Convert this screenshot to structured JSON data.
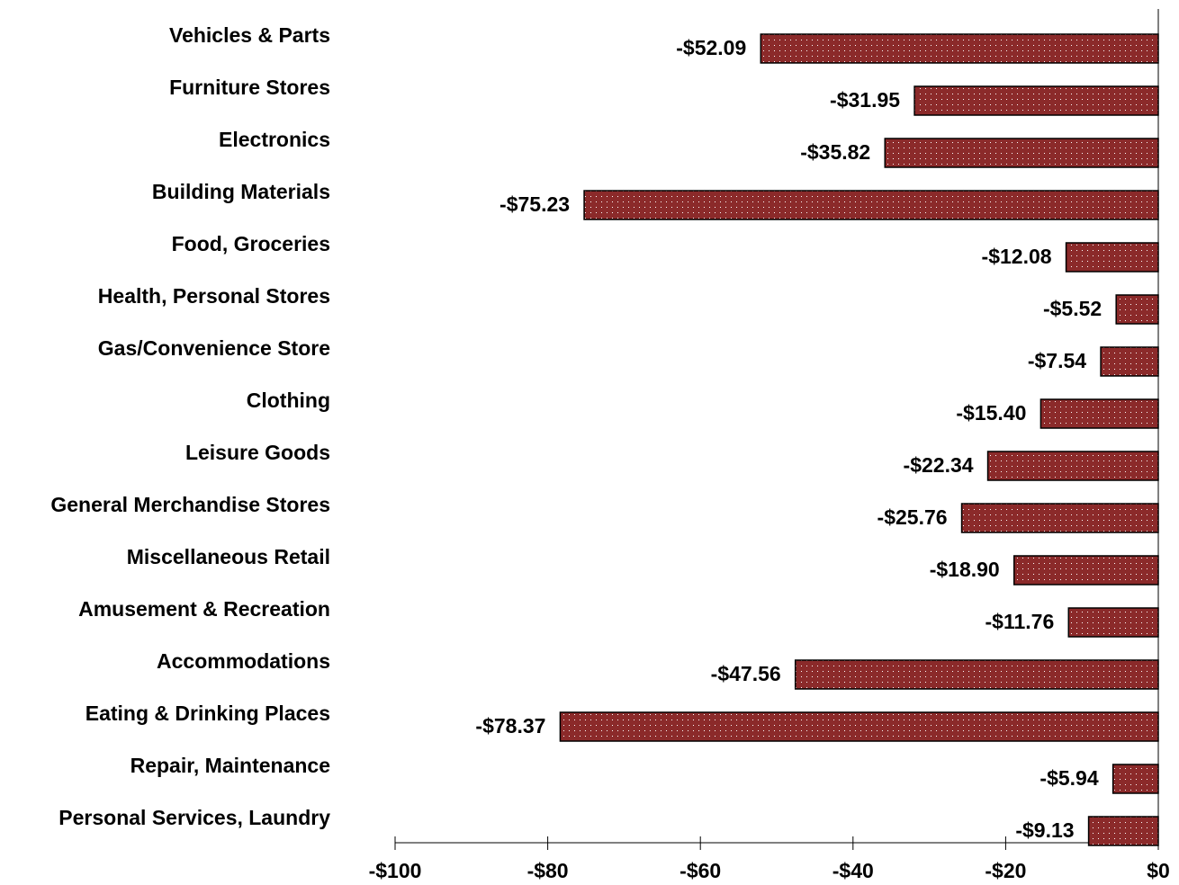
{
  "chart_data": {
    "type": "barh",
    "categories": [
      "Vehicles & Parts",
      "Furniture Stores",
      "Electronics",
      "Building Materials",
      "Food, Groceries",
      "Health, Personal Stores",
      "Gas/Convenience Store",
      "Clothing",
      "Leisure Goods",
      "General Merchandise Stores",
      "Miscellaneous Retail",
      "Amusement & Recreation",
      "Accommodations",
      "Eating & Drinking Places",
      "Repair, Maintenance",
      "Personal Services, Laundry"
    ],
    "values": [
      -52.09,
      -31.95,
      -35.82,
      -75.23,
      -12.08,
      -5.52,
      -7.54,
      -15.4,
      -22.34,
      -25.76,
      -18.9,
      -11.76,
      -47.56,
      -78.37,
      -5.94,
      -9.13
    ],
    "value_labels": [
      "-$52.09",
      "-$31.95",
      "-$35.82",
      "-$75.23",
      "-$12.08",
      "-$5.52",
      "-$7.54",
      "-$15.40",
      "-$22.34",
      "-$25.76",
      "-$18.90",
      "-$11.76",
      "-$47.56",
      "-$78.37",
      "-$5.94",
      "-$9.13"
    ],
    "color": "#8b2a2a",
    "xlim": [
      -100,
      0
    ],
    "xticks": [
      {
        "value": -100,
        "label": "-$100"
      },
      {
        "value": -80,
        "label": "-$80"
      },
      {
        "value": -60,
        "label": "-$60"
      },
      {
        "value": -40,
        "label": "-$40"
      },
      {
        "value": -20,
        "label": "-$20"
      },
      {
        "value": 0,
        "label": "$0"
      }
    ]
  }
}
